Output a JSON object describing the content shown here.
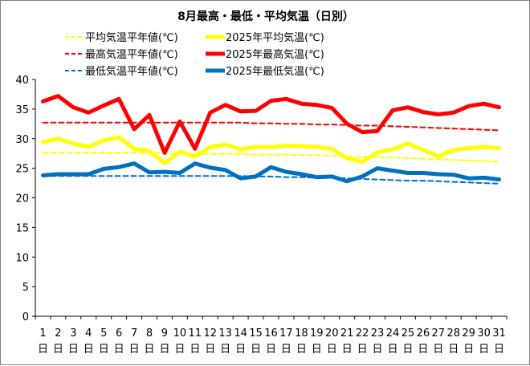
{
  "chart_data": {
    "type": "line",
    "title": "8月最高・最低・平均気温（日別）",
    "xlabel": "",
    "ylabel": "",
    "ylim": [
      0,
      40
    ],
    "yticks": [
      0,
      5,
      10,
      15,
      20,
      25,
      30,
      35,
      40
    ],
    "x": [
      1,
      2,
      3,
      4,
      5,
      6,
      7,
      8,
      9,
      10,
      11,
      12,
      13,
      14,
      15,
      16,
      17,
      18,
      19,
      20,
      21,
      22,
      23,
      24,
      25,
      26,
      27,
      28,
      29,
      30,
      31
    ],
    "day_suffix": "日",
    "grid": false,
    "legend_position": "top",
    "series": [
      {
        "name": "平均気温平年値(℃)",
        "color": "#ffff00",
        "style": "dashed",
        "width": 2,
        "values": [
          27.6,
          27.6,
          27.6,
          27.6,
          27.6,
          27.6,
          27.6,
          27.6,
          27.5,
          27.5,
          27.5,
          27.4,
          27.4,
          27.4,
          27.3,
          27.3,
          27.3,
          27.2,
          27.2,
          27.1,
          27.0,
          26.9,
          26.9,
          26.8,
          26.7,
          26.6,
          26.5,
          26.4,
          26.3,
          26.2,
          26.1
        ]
      },
      {
        "name": "2025年平均気温(℃)",
        "color": "#ffff00",
        "style": "solid",
        "width": 5,
        "values": [
          29.4,
          30.0,
          29.2,
          28.6,
          29.7,
          30.2,
          28.3,
          27.9,
          25.8,
          27.8,
          27.0,
          28.6,
          29.0,
          28.2,
          28.6,
          28.6,
          28.8,
          28.7,
          28.6,
          28.3,
          26.7,
          26.1,
          27.7,
          28.2,
          29.2,
          28.1,
          27.0,
          28.1,
          28.4,
          28.6,
          28.4
        ]
      },
      {
        "name": "最高気温平年値(℃)",
        "color": "#ff0000",
        "style": "dashed",
        "width": 2,
        "values": [
          32.7,
          32.7,
          32.7,
          32.7,
          32.7,
          32.7,
          32.7,
          32.7,
          32.7,
          32.7,
          32.7,
          32.7,
          32.7,
          32.7,
          32.6,
          32.6,
          32.5,
          32.5,
          32.4,
          32.4,
          32.3,
          32.2,
          32.2,
          32.1,
          32.0,
          31.9,
          31.8,
          31.7,
          31.6,
          31.5,
          31.4
        ]
      },
      {
        "name": "2025年最高気温(℃)",
        "color": "#ff0000",
        "style": "solid",
        "width": 5,
        "values": [
          36.3,
          37.2,
          35.3,
          34.4,
          35.6,
          36.7,
          31.6,
          34.0,
          27.6,
          32.9,
          28.3,
          34.4,
          35.7,
          34.6,
          34.7,
          36.4,
          36.7,
          35.9,
          35.7,
          35.2,
          32.5,
          31.1,
          31.3,
          34.8,
          35.3,
          34.5,
          34.1,
          34.4,
          35.5,
          35.9,
          35.3
        ]
      },
      {
        "name": "最低気温平年値(℃)",
        "color": "#0070c0",
        "style": "dashed",
        "width": 2,
        "values": [
          23.7,
          23.7,
          23.7,
          23.7,
          23.7,
          23.7,
          23.7,
          23.7,
          23.7,
          23.7,
          23.7,
          23.7,
          23.7,
          23.7,
          23.6,
          23.6,
          23.5,
          23.5,
          23.4,
          23.4,
          23.3,
          23.2,
          23.1,
          23.0,
          22.9,
          22.9,
          22.8,
          22.7,
          22.6,
          22.5,
          22.4
        ]
      },
      {
        "name": "2025年最低気温(℃)",
        "color": "#0070c0",
        "style": "solid",
        "width": 5,
        "values": [
          23.8,
          24.0,
          24.0,
          24.0,
          24.9,
          25.2,
          25.8,
          24.3,
          24.4,
          24.2,
          25.8,
          25.1,
          24.7,
          23.3,
          23.6,
          25.2,
          24.4,
          24.0,
          23.5,
          23.6,
          22.8,
          23.6,
          25.0,
          24.6,
          24.2,
          24.2,
          24.0,
          23.9,
          23.3,
          23.4,
          23.1
        ]
      }
    ]
  }
}
